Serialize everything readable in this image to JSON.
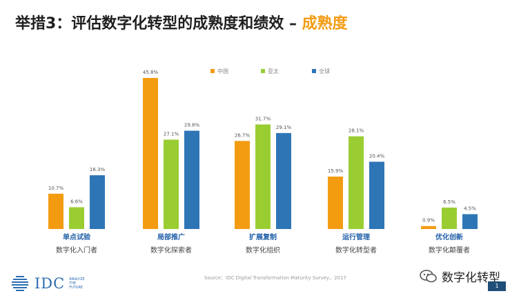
{
  "header": {
    "title_main": "举措3：评估数字化转型的成熟度和绩效 – ",
    "title_highlight": "成熟度"
  },
  "source": "Source：IDC Digital Transformation Maturity Survey，2017",
  "logo": {
    "text": "IDC",
    "tagline": "ANALYZE THE FUTURE"
  },
  "watermark": "数字化转型",
  "page_number": "1",
  "colors": {
    "china": "#f39c12",
    "asia_pacific": "#9acd32",
    "global": "#2e75b6",
    "stage_label": "#1f5fa8"
  },
  "chart_data": {
    "type": "bar",
    "categories": [
      "单点试验",
      "局部推广",
      "扩展复制",
      "运行管理",
      "优化创新"
    ],
    "stage_names": [
      "数字化入门者",
      "数字化探索者",
      "数字化组织",
      "数字化转型者",
      "数字化颠覆者"
    ],
    "series": [
      {
        "name": "中国",
        "values": [
          10.7,
          45.8,
          26.7,
          15.9,
          0.9
        ],
        "labels": [
          "10.7%",
          "45.8%",
          "26.7%",
          "15.9%",
          "0.9%"
        ]
      },
      {
        "name": "亚太",
        "values": [
          6.6,
          27.1,
          31.7,
          28.1,
          6.5
        ],
        "labels": [
          "6.6%",
          "27.1%",
          "31.7%",
          "28.1%",
          "6.5%"
        ]
      },
      {
        "name": "全球",
        "values": [
          16.3,
          29.8,
          29.1,
          20.4,
          4.5
        ],
        "labels": [
          "16.3%",
          "29.8%",
          "29.1%",
          "20.4%",
          "4.5%"
        ]
      }
    ],
    "ylim": [
      0,
      50
    ],
    "grid": false,
    "legend_position": "top-center"
  }
}
